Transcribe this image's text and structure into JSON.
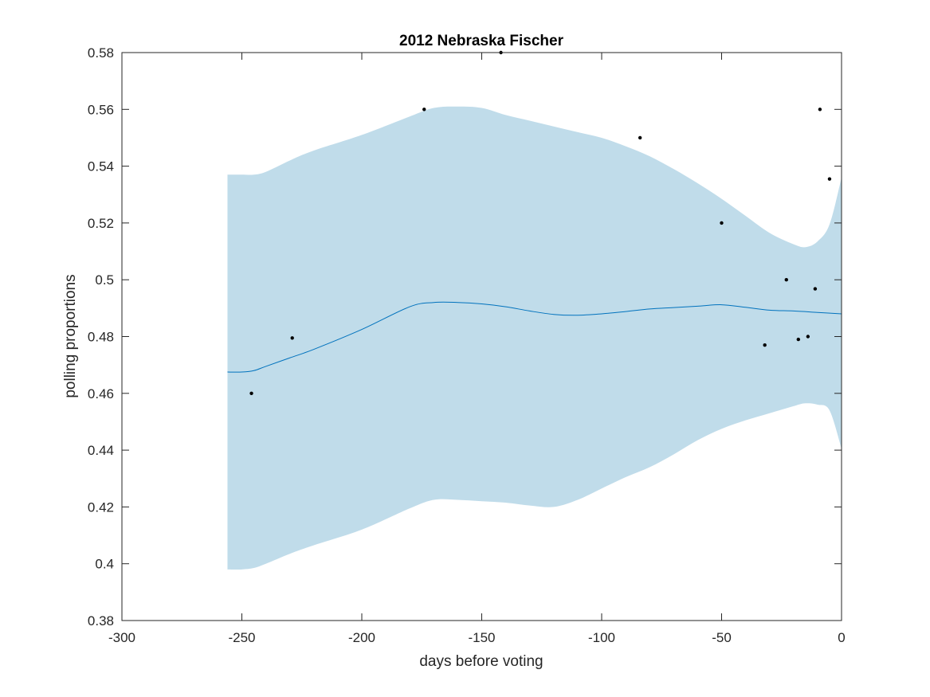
{
  "chart_data": {
    "type": "line",
    "title": "2012 Nebraska Fischer",
    "xlabel": "days before voting",
    "ylabel": "polling proportions",
    "xlim": [
      -300,
      0
    ],
    "ylim": [
      0.38,
      0.58
    ],
    "xticks": [
      -300,
      -250,
      -200,
      -150,
      -100,
      -50,
      0
    ],
    "xtick_labels": [
      "-300",
      "-250",
      "-200",
      "-150",
      "-100",
      "-50",
      "0"
    ],
    "yticks": [
      0.38,
      0.4,
      0.42,
      0.44,
      0.46,
      0.48,
      0.5,
      0.52,
      0.54,
      0.56,
      0.58
    ],
    "ytick_labels": [
      "0.38",
      "0.4",
      "0.42",
      "0.44",
      "0.46",
      "0.48",
      "0.5",
      "0.52",
      "0.54",
      "0.56",
      "0.58"
    ],
    "grid": false,
    "colors": {
      "band": "#c0dcea",
      "line": "#0072bd",
      "points": "#000000",
      "axes": "#262626"
    },
    "band": {
      "x": [
        -256,
        -250,
        -245,
        -240,
        -230,
        -220,
        -200,
        -180,
        -170,
        -160,
        -150,
        -140,
        -130,
        -120,
        -110,
        -100,
        -90,
        -80,
        -70,
        -60,
        -50,
        -40,
        -30,
        -20,
        -15,
        -10,
        -5,
        0
      ],
      "upper": [
        0.537,
        0.537,
        0.537,
        0.538,
        0.542,
        0.5455,
        0.551,
        0.5575,
        0.5605,
        0.561,
        0.5605,
        0.558,
        0.556,
        0.554,
        0.552,
        0.55,
        0.547,
        0.5435,
        0.539,
        0.534,
        0.5285,
        0.5225,
        0.5165,
        0.5125,
        0.5115,
        0.5135,
        0.5195,
        0.536
      ],
      "lower": [
        0.398,
        0.398,
        0.3985,
        0.4,
        0.4035,
        0.4065,
        0.412,
        0.4195,
        0.4225,
        0.4225,
        0.422,
        0.4215,
        0.4205,
        0.42,
        0.4225,
        0.4265,
        0.4305,
        0.434,
        0.4385,
        0.4435,
        0.4475,
        0.4505,
        0.453,
        0.4555,
        0.4565,
        0.456,
        0.454,
        0.4405
      ]
    },
    "series": [
      {
        "x": [
          -256,
          -250,
          -245,
          -240,
          -230,
          -220,
          -200,
          -180,
          -170,
          -160,
          -150,
          -140,
          -130,
          -120,
          -110,
          -100,
          -90,
          -80,
          -70,
          -60,
          -50,
          -40,
          -30,
          -20,
          -10,
          0
        ],
        "values": [
          0.4675,
          0.4675,
          0.468,
          0.4695,
          0.4725,
          0.4755,
          0.4825,
          0.4905,
          0.492,
          0.492,
          0.4915,
          0.4905,
          0.489,
          0.4878,
          0.4875,
          0.488,
          0.4888,
          0.4897,
          0.4902,
          0.4907,
          0.4912,
          0.4903,
          0.4893,
          0.489,
          0.4885,
          0.488
        ]
      }
    ],
    "points": {
      "x": [
        -246,
        -229,
        -174,
        -142,
        -84,
        -50,
        -32,
        -23,
        -18,
        -14,
        -11,
        -9,
        -5
      ],
      "y": [
        0.46,
        0.4795,
        0.56,
        0.58,
        0.55,
        0.52,
        0.477,
        0.5,
        0.479,
        0.48,
        0.4968,
        0.56,
        0.5355
      ]
    }
  }
}
